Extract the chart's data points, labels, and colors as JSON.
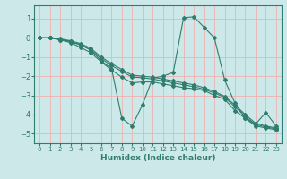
{
  "xlabel": "Humidex (Indice chaleur)",
  "xlim": [
    -0.5,
    23.5
  ],
  "ylim": [
    -5.5,
    1.7
  ],
  "yticks": [
    -5,
    -4,
    -3,
    -2,
    -1,
    0,
    1
  ],
  "xticks": [
    0,
    1,
    2,
    3,
    4,
    5,
    6,
    7,
    8,
    9,
    10,
    11,
    12,
    13,
    14,
    15,
    16,
    17,
    18,
    19,
    20,
    21,
    22,
    23
  ],
  "bg_color": "#cde8e8",
  "grid_color": "#f0b0b0",
  "line_color": "#2e7d6e",
  "lines": [
    {
      "x": [
        0,
        1,
        2,
        3,
        4,
        5,
        6,
        7,
        8,
        9,
        10,
        11,
        12,
        13,
        14,
        15,
        16,
        17,
        18,
        19,
        20,
        21,
        22,
        23
      ],
      "y": [
        0,
        0,
        -0.1,
        -0.2,
        -0.35,
        -0.65,
        -1.2,
        -1.6,
        -4.2,
        -4.6,
        -3.5,
        -2.1,
        -2.0,
        -1.8,
        1.05,
        1.1,
        0.55,
        0.0,
        -2.2,
        -3.4,
        -4.2,
        -4.5,
        -3.9,
        -4.6
      ]
    },
    {
      "x": [
        0,
        1,
        2,
        3,
        4,
        5,
        6,
        7,
        8,
        9,
        10,
        11,
        12,
        13,
        14,
        15,
        16,
        17,
        18,
        19,
        20,
        21,
        22,
        23
      ],
      "y": [
        0,
        0,
        -0.05,
        -0.15,
        -0.3,
        -0.55,
        -1.0,
        -1.35,
        -1.65,
        -1.95,
        -2.0,
        -2.05,
        -2.15,
        -2.25,
        -2.35,
        -2.45,
        -2.6,
        -2.8,
        -3.05,
        -3.5,
        -4.0,
        -4.45,
        -4.6,
        -4.7
      ]
    },
    {
      "x": [
        0,
        1,
        2,
        3,
        4,
        5,
        6,
        7,
        8,
        9,
        10,
        11,
        12,
        13,
        14,
        15,
        16,
        17,
        18,
        19,
        20,
        21,
        22,
        23
      ],
      "y": [
        0,
        0,
        -0.08,
        -0.18,
        -0.38,
        -0.62,
        -1.08,
        -1.45,
        -1.75,
        -2.05,
        -2.08,
        -2.15,
        -2.25,
        -2.35,
        -2.45,
        -2.55,
        -2.68,
        -2.88,
        -3.1,
        -3.6,
        -4.1,
        -4.52,
        -4.65,
        -4.75
      ]
    },
    {
      "x": [
        0,
        1,
        2,
        3,
        4,
        5,
        6,
        7,
        8,
        9,
        10,
        11,
        12,
        13,
        14,
        15,
        16,
        17,
        18,
        19,
        20,
        21,
        22,
        23
      ],
      "y": [
        0,
        0,
        -0.1,
        -0.25,
        -0.5,
        -0.78,
        -1.25,
        -1.68,
        -2.05,
        -2.35,
        -2.3,
        -2.3,
        -2.4,
        -2.5,
        -2.6,
        -2.65,
        -2.75,
        -3.0,
        -3.2,
        -3.8,
        -4.2,
        -4.6,
        -4.7,
        -4.8
      ]
    }
  ]
}
